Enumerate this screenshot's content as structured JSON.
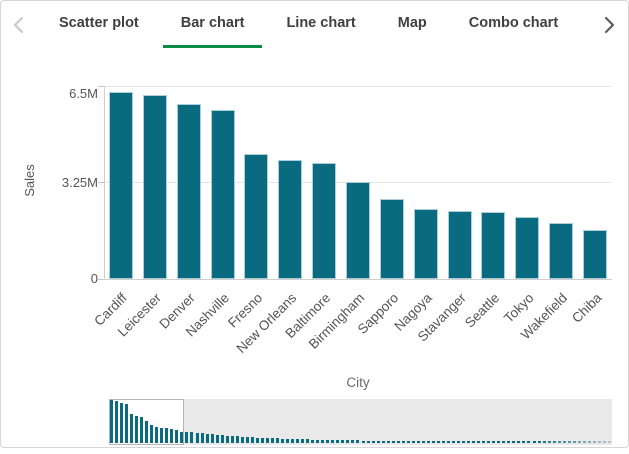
{
  "tabs": {
    "active_color": "#0a8b44",
    "items": [
      {
        "label": "Scatter plot",
        "active": false
      },
      {
        "label": "Bar chart",
        "active": true
      },
      {
        "label": "Line chart",
        "active": false
      },
      {
        "label": "Map",
        "active": false
      },
      {
        "label": "Combo chart",
        "active": false
      }
    ]
  },
  "icons": {
    "prev": "chevron-left-icon",
    "next": "chevron-right-icon"
  },
  "chart_data": {
    "type": "bar",
    "title": "",
    "xlabel": "City",
    "ylabel": "Sales",
    "unit": "M",
    "ylim": [
      0,
      6.5
    ],
    "grid": "horizontal",
    "bar_color": "#0a6a80",
    "y_ticks": [
      {
        "value": 0,
        "label": "0"
      },
      {
        "value": 3.25,
        "label": "3.25M"
      },
      {
        "value": 6.5,
        "label": "6.5M"
      }
    ],
    "categories": [
      "Cardiff",
      "Leicester",
      "Denver",
      "Nashville",
      "Fresno",
      "New Orleans",
      "Baltimore",
      "Birmingham",
      "Sapporo",
      "Nagoya",
      "Stavanger",
      "Seattle",
      "Tokyo",
      "Wakefield",
      "Chiba"
    ],
    "values": [
      6.3,
      6.2,
      5.9,
      5.7,
      4.2,
      4.0,
      3.9,
      3.25,
      2.7,
      2.35,
      2.3,
      2.25,
      2.1,
      1.9,
      1.65
    ],
    "navigator": {
      "window_start": 0,
      "window_bars": 15,
      "bar_heights": [
        0.97,
        0.95,
        0.91,
        0.88,
        0.65,
        0.62,
        0.6,
        0.5,
        0.42,
        0.36,
        0.35,
        0.35,
        0.32,
        0.29,
        0.25,
        0.25,
        0.24,
        0.23,
        0.22,
        0.21,
        0.2,
        0.19,
        0.18,
        0.17,
        0.16,
        0.15,
        0.14,
        0.14,
        0.13,
        0.125,
        0.12,
        0.114,
        0.109,
        0.104,
        0.1,
        0.096,
        0.092,
        0.088,
        0.085,
        0.081,
        0.078,
        0.076,
        0.073,
        0.07,
        0.068,
        0.066,
        0.064,
        0.062,
        0.06,
        0.059,
        0.057,
        0.056,
        0.055,
        0.053,
        0.052,
        0.051,
        0.05,
        0.049,
        0.049,
        0.048,
        0.047,
        0.046,
        0.046,
        0.045,
        0.045,
        0.044,
        0.044,
        0.043,
        0.043,
        0.042,
        0.042,
        0.042,
        0.041,
        0.041,
        0.041,
        0.04,
        0.04,
        0.04,
        0.04,
        0.039,
        0.039,
        0.039,
        0.039,
        0.038,
        0.038,
        0.038,
        0.038,
        0.038,
        0.037,
        0.037,
        0.037,
        0.037,
        0.037,
        0.037,
        0.036,
        0.036,
        0.036,
        0.036,
        0.036,
        0.036
      ]
    }
  }
}
